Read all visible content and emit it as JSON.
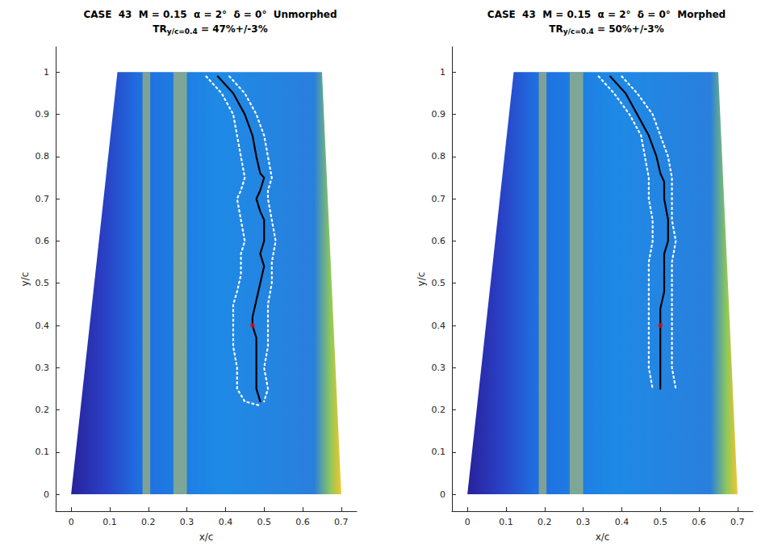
{
  "chart_data": [
    {
      "type": "line",
      "title": "CASE  43  M = 0.15  α = 2°  δ = 0°  Unmorphed",
      "subtitle": [
        "TR",
        "y/c=0.4",
        " = 47%+/-3%"
      ],
      "xlabel": "x/c",
      "ylabel": "y/c",
      "xlim": [
        -0.04,
        0.74
      ],
      "ylim": [
        -0.04,
        1.06
      ],
      "xticks": [
        0,
        0.1,
        0.2,
        0.3,
        0.4,
        0.5,
        0.6,
        0.7
      ],
      "yticks": [
        0,
        0.1,
        0.2,
        0.3,
        0.4,
        0.5,
        0.6,
        0.7,
        0.8,
        0.9,
        1
      ],
      "grid": false,
      "planform": {
        "x": [
          0,
          0.7,
          0.65,
          0.12
        ],
        "y": [
          0,
          0,
          1,
          1
        ]
      },
      "streaks": [
        {
          "x": [
            0.185,
            0.205
          ],
          "y": [
            0,
            1
          ]
        },
        {
          "x": [
            0.265,
            0.3
          ],
          "y": [
            0,
            1
          ]
        }
      ],
      "series": [
        {
          "type": "line",
          "color": "#ffffff",
          "line_style": "dotted",
          "x": [
            0.35,
            0.39,
            0.42,
            0.43,
            0.44,
            0.45,
            0.44,
            0.43,
            0.44,
            0.45,
            0.44,
            0.44,
            0.43,
            0.42,
            0.42,
            0.42,
            0.43,
            0.43,
            0.45,
            0.49
          ],
          "y": [
            0.99,
            0.95,
            0.9,
            0.85,
            0.8,
            0.75,
            0.72,
            0.7,
            0.65,
            0.6,
            0.57,
            0.52,
            0.48,
            0.45,
            0.4,
            0.35,
            0.3,
            0.25,
            0.22,
            0.21
          ]
        },
        {
          "type": "line",
          "color": "#ffffff",
          "line_style": "dotted",
          "x": [
            0.41,
            0.45,
            0.48,
            0.5,
            0.51,
            0.52,
            0.51,
            0.51,
            0.52,
            0.53,
            0.52,
            0.52,
            0.51,
            0.51,
            0.51,
            0.5,
            0.51,
            0.5
          ],
          "y": [
            0.99,
            0.95,
            0.9,
            0.85,
            0.8,
            0.75,
            0.72,
            0.7,
            0.65,
            0.6,
            0.55,
            0.5,
            0.45,
            0.4,
            0.35,
            0.3,
            0.25,
            0.22
          ]
        },
        {
          "type": "line",
          "color": "#000000",
          "line_style": "solid",
          "x": [
            0.38,
            0.42,
            0.45,
            0.47,
            0.48,
            0.49,
            0.5,
            0.49,
            0.48,
            0.49,
            0.5,
            0.5,
            0.49,
            0.5,
            0.49,
            0.48,
            0.47,
            0.47,
            0.48,
            0.48,
            0.48,
            0.48,
            0.48,
            0.49
          ],
          "y": [
            0.99,
            0.95,
            0.9,
            0.85,
            0.8,
            0.76,
            0.75,
            0.72,
            0.7,
            0.67,
            0.65,
            0.6,
            0.57,
            0.54,
            0.5,
            0.46,
            0.42,
            0.4,
            0.37,
            0.35,
            0.32,
            0.28,
            0.25,
            0.22
          ]
        },
        {
          "type": "scatter",
          "color": "#e01010",
          "marker": "circle",
          "x": [
            0.47
          ],
          "y": [
            0.4
          ]
        }
      ]
    },
    {
      "type": "line",
      "title": "CASE  43  M = 0.15  α = 2°  δ = 0°  Morphed",
      "subtitle": [
        "TR",
        "y/c=0.4",
        " = 50%+/-3%"
      ],
      "xlabel": "x/c",
      "ylabel": "y/c",
      "xlim": [
        -0.04,
        0.74
      ],
      "ylim": [
        -0.04,
        1.06
      ],
      "xticks": [
        0,
        0.1,
        0.2,
        0.3,
        0.4,
        0.5,
        0.6,
        0.7
      ],
      "yticks": [
        0,
        0.1,
        0.2,
        0.3,
        0.4,
        0.5,
        0.6,
        0.7,
        0.8,
        0.9,
        1
      ],
      "grid": false,
      "planform": {
        "x": [
          0,
          0.7,
          0.65,
          0.12
        ],
        "y": [
          0,
          0,
          1,
          1
        ]
      },
      "streaks": [
        {
          "x": [
            0.185,
            0.205
          ],
          "y": [
            0,
            1
          ]
        },
        {
          "x": [
            0.265,
            0.3
          ],
          "y": [
            0,
            1
          ]
        }
      ],
      "series": [
        {
          "type": "line",
          "color": "#ffffff",
          "line_style": "dotted",
          "x": [
            0.34,
            0.38,
            0.42,
            0.45,
            0.46,
            0.47,
            0.47,
            0.48,
            0.48,
            0.47,
            0.47,
            0.47,
            0.47,
            0.47,
            0.47,
            0.48
          ],
          "y": [
            0.99,
            0.95,
            0.9,
            0.85,
            0.8,
            0.75,
            0.7,
            0.65,
            0.6,
            0.55,
            0.5,
            0.45,
            0.4,
            0.35,
            0.3,
            0.25
          ]
        },
        {
          "type": "line",
          "color": "#ffffff",
          "line_style": "dotted",
          "x": [
            0.4,
            0.44,
            0.48,
            0.5,
            0.52,
            0.53,
            0.53,
            0.53,
            0.54,
            0.53,
            0.53,
            0.53,
            0.53,
            0.53,
            0.53,
            0.54
          ],
          "y": [
            0.99,
            0.95,
            0.9,
            0.85,
            0.8,
            0.75,
            0.7,
            0.65,
            0.6,
            0.55,
            0.5,
            0.45,
            0.4,
            0.35,
            0.3,
            0.25
          ]
        },
        {
          "type": "line",
          "color": "#000000",
          "line_style": "solid",
          "x": [
            0.37,
            0.41,
            0.44,
            0.47,
            0.49,
            0.5,
            0.51,
            0.51,
            0.52,
            0.52,
            0.51,
            0.51,
            0.51,
            0.5,
            0.5,
            0.5,
            0.5,
            0.5,
            0.5
          ],
          "y": [
            0.99,
            0.95,
            0.9,
            0.85,
            0.8,
            0.76,
            0.74,
            0.7,
            0.65,
            0.6,
            0.57,
            0.52,
            0.48,
            0.44,
            0.4,
            0.36,
            0.32,
            0.28,
            0.25
          ]
        },
        {
          "type": "scatter",
          "color": "#e01010",
          "marker": "circle",
          "x": [
            0.5
          ],
          "y": [
            0.4
          ]
        }
      ]
    }
  ]
}
